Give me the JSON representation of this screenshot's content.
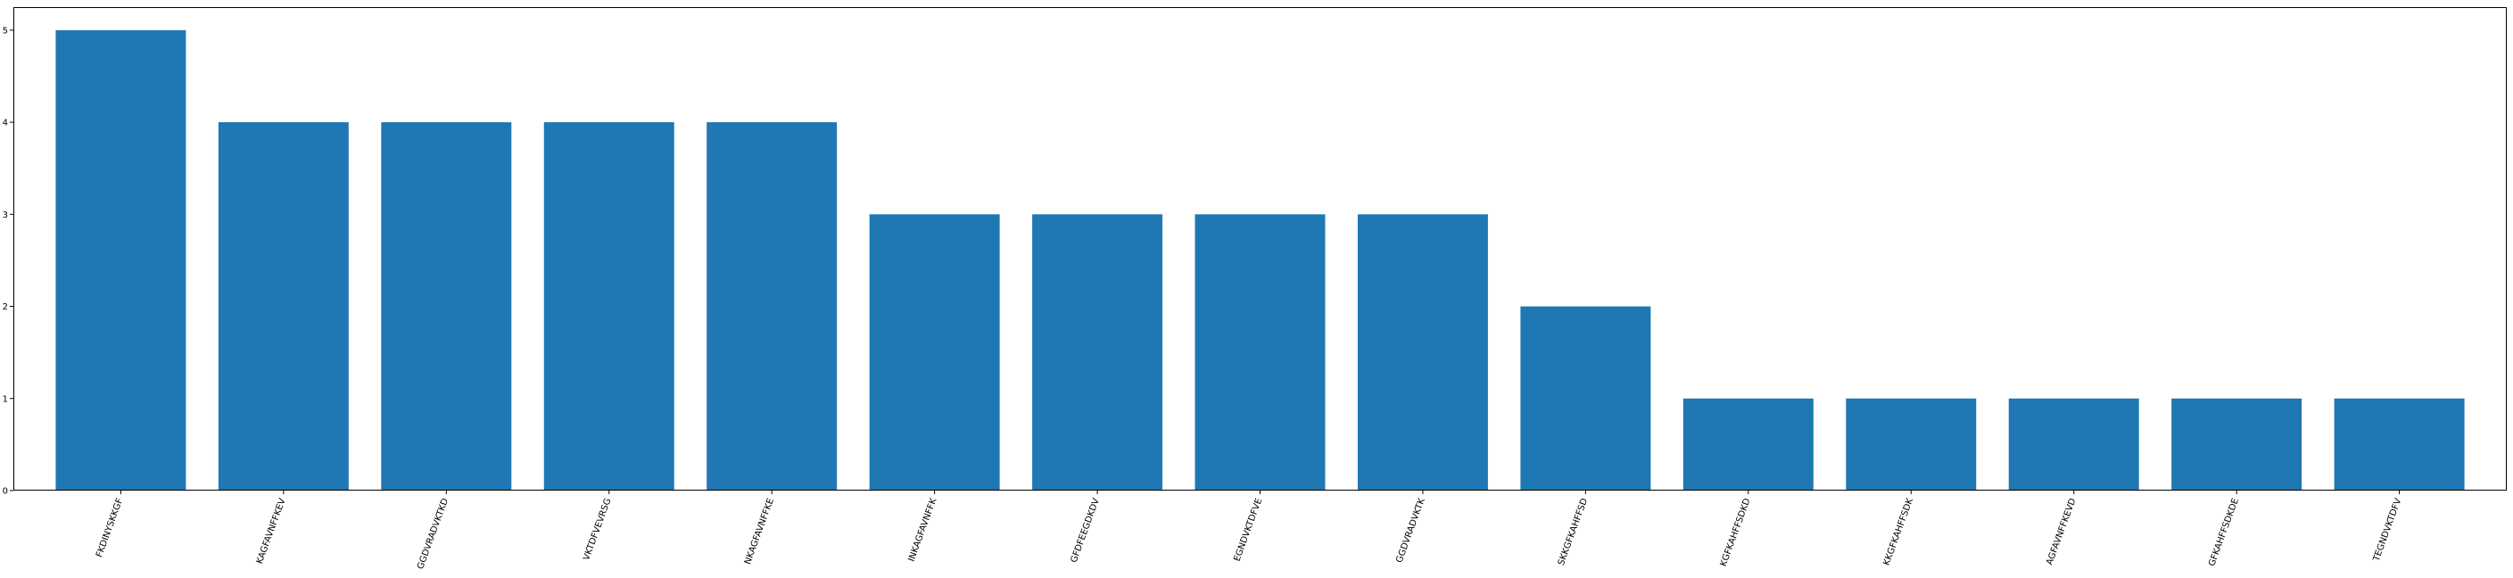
{
  "chart_data": {
    "type": "bar",
    "title": "",
    "xlabel": "",
    "ylabel": "",
    "categories": [
      "FKDINYSKKGF",
      "KAGFAVNFFKEV",
      "GGDVRADVKTKD",
      "VKTDFVEVRSG",
      "NKAGFAVNFFKE",
      "INKAGFAVNFFK",
      "GFDFEEGDKDV",
      "EGNDVKTDFVE",
      "GGDVRADVKTK",
      "SKKGFKAHFFSD",
      "KGFKAHFFSDKD",
      "KKGFKAHFFSDK",
      "AGFAVNFFKEVD",
      "GFKAHFFSDKDE",
      "TEGNDVKTDFV"
    ],
    "values": [
      5,
      4,
      4,
      4,
      4,
      3,
      3,
      3,
      3,
      2,
      1,
      1,
      1,
      1,
      1
    ],
    "ylim": [
      0,
      5.25
    ],
    "yticks": [
      0,
      1,
      2,
      3,
      4,
      5
    ],
    "grid": false,
    "colors": {
      "bar": "#1f77b4",
      "axes": "#000000",
      "background": "#ffffff"
    }
  }
}
